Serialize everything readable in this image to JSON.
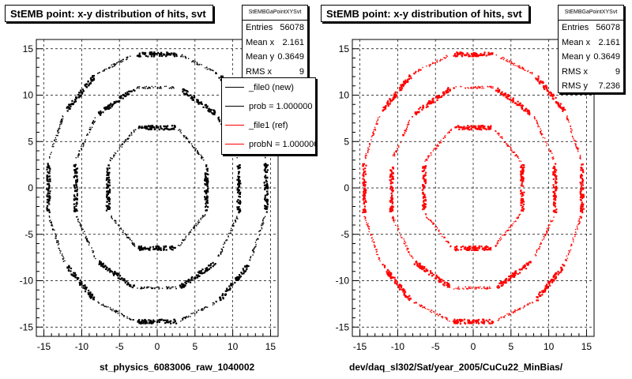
{
  "canvas_footer": "",
  "panels": [
    {
      "title": "StEMB point: x-y distribution of hits, svt",
      "stats": {
        "name": "StEMBGaPointXYSvt",
        "entries_label": "Entries",
        "entries": "56078",
        "meanx_label": "Mean x",
        "meanx": "2.161",
        "meany_label": "Mean y",
        "meany": "0.3649",
        "rmsx_label": "RMS x",
        "rmsx": "9"
      },
      "legend": [
        {
          "label": "_file0 (new)",
          "color": "#000000"
        },
        {
          "label": "prob = 1.000000",
          "color": "#000000"
        },
        {
          "label": "_file1 (ref)",
          "color": "#ff0000"
        },
        {
          "label": "probN = 1.000000",
          "color": "#ff0000"
        }
      ],
      "xaxis_title": "st_physics_6083006_raw_1040002"
    },
    {
      "title": "StEMB point: x-y distribution of hits, svt",
      "stats": {
        "name": "StEMBGaPointXYSvt",
        "entries_label": "Entries",
        "entries": "56078",
        "meanx_label": "Mean x",
        "meanx": "2.161",
        "meany_label": "Mean y",
        "meany": "0.3649",
        "rmsx_label": "RMS x",
        "rmsx": "9",
        "rmsy_label": "RMS y",
        "rmsy": "7.236"
      },
      "xaxis_title": "dev/daq_sl302/Sat/year_2005/CuCu22_MinBias/"
    }
  ],
  "chart_data": [
    {
      "type": "scatter",
      "title": "StEMB point: x-y distribution of hits, svt",
      "xlabel": "st_physics_6083006_raw_1040002",
      "ylabel": "",
      "xlim": [
        -16,
        16
      ],
      "ylim": [
        -16,
        16
      ],
      "xticks": [
        -15,
        -10,
        -5,
        0,
        5,
        10,
        15
      ],
      "yticks": [
        -15,
        -10,
        -5,
        0,
        5,
        10,
        15
      ],
      "grid": true,
      "legend_position": "top-right",
      "series": [
        {
          "name": "_file0 (new)",
          "color": "#000000",
          "layers": [
            {
              "apothem": 6.5,
              "sides": 8
            },
            {
              "apothem": 10.8,
              "sides": 12
            },
            {
              "apothem": 14.4,
              "sides": 16
            }
          ]
        }
      ]
    },
    {
      "type": "scatter",
      "title": "StEMB point: x-y distribution of hits, svt",
      "xlabel": "dev/daq_sl302/Sat/year_2005/CuCu22_MinBias/",
      "ylabel": "",
      "xlim": [
        -16,
        16
      ],
      "ylim": [
        -16,
        16
      ],
      "xticks": [
        -15,
        -10,
        -5,
        0,
        5,
        10,
        15
      ],
      "yticks": [
        -15,
        -10,
        -5,
        0,
        5,
        10,
        15
      ],
      "grid": true,
      "series": [
        {
          "name": "_file1 (ref)",
          "color": "#ff0000",
          "layers": [
            {
              "apothem": 6.5,
              "sides": 8
            },
            {
              "apothem": 10.8,
              "sides": 12
            },
            {
              "apothem": 14.4,
              "sides": 16
            }
          ]
        }
      ]
    }
  ]
}
